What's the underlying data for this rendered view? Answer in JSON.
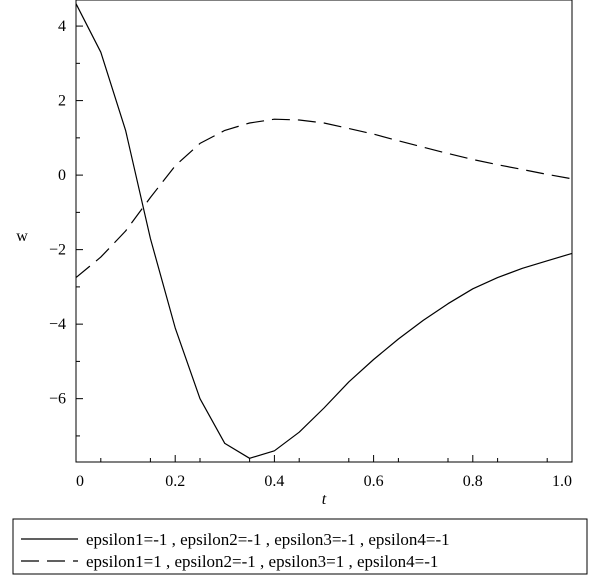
{
  "chart_data": {
    "type": "line",
    "title": "",
    "xlabel": "t",
    "ylabel": "w",
    "xlim": [
      0,
      1.0
    ],
    "ylim": [
      -7.7,
      4.7
    ],
    "grid": false,
    "legend_position": "bottom",
    "x_ticks": [
      {
        "value": 0,
        "label": "0"
      },
      {
        "value": 0.2,
        "label": "0.2"
      },
      {
        "value": 0.4,
        "label": "0.4"
      },
      {
        "value": 0.6,
        "label": "0.6"
      },
      {
        "value": 0.8,
        "label": "0.8"
      },
      {
        "value": 1.0,
        "label": "1.0"
      }
    ],
    "y_ticks": [
      {
        "value": 4,
        "label": "4"
      },
      {
        "value": 2,
        "label": "2"
      },
      {
        "value": 0,
        "label": "0"
      },
      {
        "value": -2,
        "label": "−2"
      },
      {
        "value": -4,
        "label": "−4"
      },
      {
        "value": -6,
        "label": "−6"
      }
    ],
    "series": [
      {
        "name": "epsilon1=-1 , epsilon2=-1 , epsilon3=-1 , epsilon4=-1",
        "style": "solid",
        "color": "#000000",
        "x": [
          0,
          0.05,
          0.1,
          0.15,
          0.2,
          0.25,
          0.3,
          0.35,
          0.4,
          0.45,
          0.5,
          0.55,
          0.6,
          0.65,
          0.7,
          0.75,
          0.8,
          0.85,
          0.9,
          0.95,
          1.0
        ],
        "y": [
          4.6,
          3.3,
          1.2,
          -1.7,
          -4.1,
          -6.0,
          -7.2,
          -7.6,
          -7.4,
          -6.9,
          -6.25,
          -5.55,
          -4.95,
          -4.4,
          -3.9,
          -3.45,
          -3.05,
          -2.75,
          -2.5,
          -2.3,
          -2.1
        ]
      },
      {
        "name": "epsilon1=1 , epsilon2=-1 , epsilon3=1 , epsilon4=-1",
        "style": "dashed",
        "color": "#000000",
        "x": [
          0,
          0.05,
          0.1,
          0.15,
          0.2,
          0.25,
          0.3,
          0.35,
          0.4,
          0.45,
          0.5,
          0.55,
          0.6,
          0.65,
          0.7,
          0.75,
          0.8,
          0.85,
          0.9,
          0.95,
          1.0
        ],
        "y": [
          -2.75,
          -2.2,
          -1.5,
          -0.6,
          0.25,
          0.85,
          1.2,
          1.4,
          1.5,
          1.48,
          1.4,
          1.25,
          1.1,
          0.92,
          0.75,
          0.58,
          0.42,
          0.28,
          0.15,
          0.02,
          -0.1
        ]
      }
    ]
  }
}
